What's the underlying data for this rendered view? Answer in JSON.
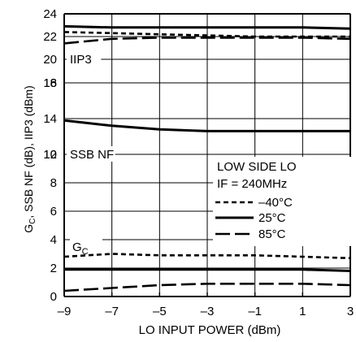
{
  "chart_data": {
    "type": "line",
    "xlabel": "LO INPUT POWER (dBm)",
    "ylabel_main": "G",
    "ylabel_sub": "C",
    "ylabel_rest": ", SSB NF (dB), IIP3 (dBm)",
    "xlim": [
      -9,
      3
    ],
    "x_ticks": [
      -9,
      -7,
      -5,
      -3,
      -1,
      1,
      3
    ],
    "x_tick_labels": [
      "–9",
      "–7",
      "–5",
      "–3",
      "–1",
      "1",
      "3"
    ],
    "grid": true,
    "panels": [
      {
        "ylim": [
          20,
          24
        ],
        "y_ticks": [
          20,
          22,
          24
        ],
        "y_tick_labels": [
          "20",
          "22",
          "24"
        ],
        "annotation": "IIP3",
        "series": [
          {
            "style": "dashed",
            "x": [
              -9,
              -7,
              -5,
              -3,
              -1,
              1,
              3
            ],
            "values": [
              22.4,
              22.3,
              22.2,
              22.1,
              22.0,
              22.0,
              22.0
            ]
          },
          {
            "style": "solid",
            "x": [
              -9,
              -7,
              -5,
              -3,
              -1,
              1,
              3
            ],
            "values": [
              22.9,
              22.8,
              22.8,
              22.8,
              22.8,
              22.8,
              22.7
            ]
          },
          {
            "style": "longdash",
            "x": [
              -9,
              -7,
              -5,
              -3,
              -1,
              1,
              3
            ],
            "values": [
              21.4,
              21.8,
              21.9,
              21.9,
              21.9,
              21.9,
              21.8
            ]
          }
        ]
      },
      {
        "ylim": [
          18,
          20
        ],
        "y_ticks": [
          18,
          20
        ],
        "y_tick_labels": [
          "18",
          ""
        ],
        "annotation": "",
        "series": []
      },
      {
        "ylim": [
          12,
          16
        ],
        "y_ticks": [
          12,
          14,
          16
        ],
        "y_tick_labels": [
          "12",
          "14",
          "16"
        ],
        "annotation": "SSB NF",
        "series": [
          {
            "style": "solid",
            "x": [
              -9,
              -7,
              -5,
              -3,
              -1,
              1,
              3
            ],
            "values": [
              13.9,
              13.6,
              13.4,
              13.3,
              13.3,
              13.3,
              13.3
            ]
          }
        ]
      },
      {
        "ylim": [
          0,
          10
        ],
        "y_ticks": [
          0,
          2,
          4,
          6,
          8,
          10
        ],
        "y_tick_labels": [
          "0",
          "2",
          "4",
          "6",
          "8",
          "10"
        ],
        "annotation": "",
        "series": [
          {
            "style": "dashed",
            "x": [
              -9,
              -7,
              -5,
              -3,
              -1,
              1,
              3
            ],
            "values": [
              2.8,
              3.0,
              2.9,
              2.9,
              2.9,
              2.8,
              2.7
            ]
          },
          {
            "style": "solid",
            "x": [
              -9,
              -7,
              -5,
              -3,
              -1,
              1,
              3
            ],
            "values": [
              1.9,
              1.9,
              1.9,
              1.9,
              1.9,
              1.9,
              1.8
            ]
          },
          {
            "style": "longdash",
            "x": [
              -9,
              -7,
              -5,
              -3,
              -1,
              1,
              3
            ],
            "values": [
              0.4,
              0.6,
              0.8,
              0.9,
              0.9,
              0.9,
              0.8
            ]
          }
        ]
      }
    ],
    "gc_label_main": "G",
    "gc_label_sub": "C",
    "legend": {
      "position": "right",
      "title_lines": [
        "LOW SIDE LO",
        "IF = 240MHz"
      ],
      "entries": [
        {
          "style": "dashed",
          "label": "–40°C"
        },
        {
          "style": "solid",
          "label": "25°C"
        },
        {
          "style": "longdash",
          "label": "85°C"
        }
      ]
    }
  }
}
